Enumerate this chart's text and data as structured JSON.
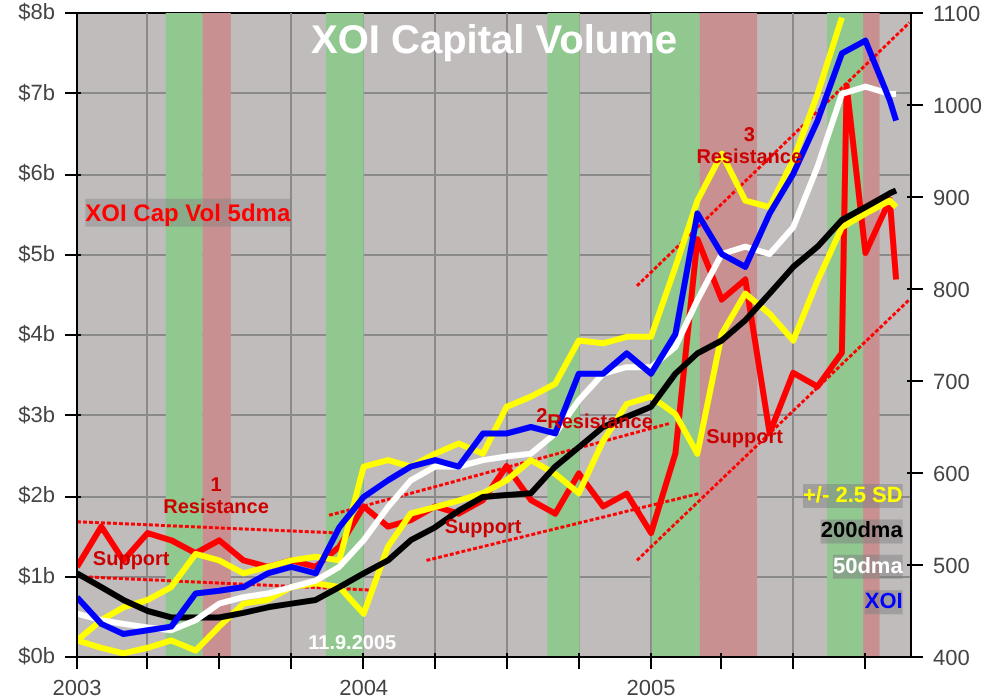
{
  "chart_data": {
    "type": "line",
    "title": "XOI Capital Volume",
    "x": [
      "2003-01",
      "2003-02",
      "2003-03",
      "2003-04",
      "2003-05",
      "2003-06",
      "2003-07",
      "2003-08",
      "2003-09",
      "2003-10",
      "2003-11",
      "2003-12",
      "2004-01",
      "2004-02",
      "2004-03",
      "2004-04",
      "2004-05",
      "2004-06",
      "2004-07",
      "2004-08",
      "2004-09",
      "2004-10",
      "2004-11",
      "2004-12",
      "2005-01",
      "2005-02",
      "2005-03",
      "2005-04",
      "2005-05",
      "2005-06",
      "2005-07",
      "2005-08",
      "2005-09",
      "2005-10",
      "2005-11",
      "2005-11-09"
    ],
    "series": [
      {
        "name": null,
        "color": "#ff0000",
        "line_style": "dotted",
        "x": [
          "2003-01-01",
          "2003-11-30"
        ],
        "values": [
          1.68,
          1.54
        ]
      },
      {
        "name": null,
        "color": "#ff0000",
        "line_style": "dotted",
        "x": [
          "2003-01-01",
          "2004-01-14"
        ],
        "values": [
          1.0,
          0.83
        ]
      },
      {
        "name": null,
        "color": "#ff0000",
        "line_style": "dotted",
        "x": [
          "2003-11-18",
          "2005-01-24"
        ],
        "values": [
          1.76,
          2.9
        ]
      },
      {
        "name": null,
        "color": "#ff0000",
        "line_style": "dotted",
        "x": [
          "2004-03-21",
          "2005-03-03"
        ],
        "values": [
          1.2,
          2.03
        ]
      },
      {
        "name": null,
        "color": "#ff0000",
        "line_style": "dotted",
        "x": [
          "2004-12-14",
          "2005-11-26"
        ],
        "values": [
          4.61,
          7.88
        ]
      },
      {
        "name": null,
        "color": "#ff0000",
        "line_style": "dotted",
        "x": [
          "2004-12-14",
          "2005-11-26"
        ],
        "values": [
          1.2,
          4.44
        ]
      },
      {
        "name": "XOI Cap Vol 5dma",
        "color": "#ff0000",
        "x": [
          "2003-01",
          "2003-02",
          "2003-03",
          "2003-04",
          "2003-05",
          "2003-06",
          "2003-07",
          "2003-08",
          "2003-09",
          "2003-10",
          "2003-11",
          "2003-12",
          "2004-01",
          "2004-02",
          "2004-03",
          "2004-04",
          "2004-05",
          "2004-06",
          "2004-07",
          "2004-08",
          "2004-09",
          "2004-10",
          "2004-11",
          "2004-12",
          "2005-01",
          "2005-02",
          "2005-03",
          "2005-04",
          "2005-05",
          "2005-06",
          "2005-07",
          "2005-08",
          "2005-09",
          "2005-09-07",
          "2005-10",
          "2005-11",
          "2005-11-09"
        ],
        "values": [
          1.12,
          1.62,
          1.2,
          1.54,
          1.45,
          1.29,
          1.45,
          1.2,
          1.12,
          1.2,
          1.12,
          1.37,
          1.87,
          1.62,
          1.7,
          1.87,
          1.78,
          1.95,
          2.37,
          1.95,
          1.78,
          2.28,
          1.87,
          2.03,
          1.54,
          2.53,
          5.19,
          4.44,
          4.69,
          2.78,
          3.53,
          3.36,
          3.78,
          7.1,
          5.02,
          5.68,
          4.69
        ]
      },
      {
        "name": "+/- 2.5 SD",
        "color": "#ffff00",
        "axis": "y2",
        "values": [
          418,
          440,
          454,
          462,
          476,
          512,
          505,
          491,
          498,
          505,
          509,
          505,
          607,
          614,
          607,
          621,
          632,
          621,
          672,
          683,
          697,
          744,
          741,
          748,
          748,
          824,
          896,
          947,
          896,
          889,
          940,
          1012,
          1095,
          null,
          null,
          null
        ]
      },
      {
        "name": null,
        "color": "#ffff00",
        "axis": "y2",
        "values": [
          418,
          410,
          404,
          410,
          418,
          407,
          433,
          458,
          462,
          476,
          480,
          476,
          447,
          520,
          556,
          563,
          570,
          578,
          592,
          614,
          599,
          578,
          635,
          675,
          683,
          664,
          621,
          751,
          795,
          773,
          744,
          809,
          867,
          882,
          896,
          889
        ]
      },
      {
        "name": "200dma",
        "color": "#000000",
        "axis": "y2",
        "values": [
          491,
          476,
          462,
          450,
          443,
          443,
          443,
          448,
          454,
          458,
          462,
          476,
          491,
          505,
          527,
          541,
          559,
          574,
          576,
          578,
          607,
          628,
          650,
          661,
          672,
          708,
          730,
          744,
          766,
          795,
          824,
          846,
          875,
          889,
          904,
          907
        ]
      },
      {
        "name": "50dma",
        "color": "#ffffff",
        "axis": "y2",
        "values": [
          447,
          440,
          436,
          432,
          429,
          440,
          458,
          465,
          469,
          476,
          483,
          498,
          527,
          563,
          592,
          607,
          607,
          614,
          618,
          621,
          643,
          679,
          708,
          715,
          715,
          737,
          788,
          838,
          846,
          838,
          867,
          933,
          1012,
          1020,
          1012,
          1012
        ]
      },
      {
        "name": "XOI",
        "color": "#0000ff",
        "axis": "y2",
        "values": [
          465,
          436,
          425,
          429,
          433,
          469,
          472,
          476,
          491,
          498,
          491,
          541,
          574,
          592,
          607,
          614,
          607,
          643,
          643,
          650,
          643,
          708,
          708,
          730,
          708,
          751,
          882,
          838,
          824,
          882,
          925,
          983,
          1056,
          1070,
          1005,
          983
        ]
      }
    ],
    "xlim": [
      "2003-01-01",
      "2005-11-28"
    ],
    "xticks": [
      "2003",
      {
        "value": "2003-04",
        "label": null
      },
      {
        "value": "2003-07",
        "label": null
      },
      {
        "value": "2003-10",
        "label": null
      },
      "2004",
      {
        "value": "2004-04",
        "label": null
      },
      {
        "value": "2004-07",
        "label": null
      },
      {
        "value": "2004-10",
        "label": null
      },
      "2005",
      {
        "value": "2005-04",
        "label": null
      },
      {
        "value": "2005-07",
        "label": null
      },
      {
        "value": "2005-10",
        "label": null
      }
    ],
    "ylim": [
      0,
      8
    ],
    "yticks": [
      {
        "value": 0,
        "label": "$0b"
      },
      {
        "value": 1,
        "label": "$1b"
      },
      {
        "value": 2,
        "label": "$2b"
      },
      {
        "value": 3,
        "label": "$3b"
      },
      {
        "value": 4,
        "label": "$4b"
      },
      {
        "value": 5,
        "label": "$5b"
      },
      {
        "value": 6,
        "label": "$6b"
      },
      {
        "value": 7,
        "label": "$7b"
      },
      {
        "value": 8,
        "label": "$8b"
      }
    ],
    "y2lim": [
      400,
      1100
    ],
    "y2ticks": [
      400,
      500,
      600,
      700,
      800,
      900,
      1000,
      1100
    ],
    "bands": [
      {
        "axis": "x",
        "from": "2003-04-24",
        "to": "2003-06-10",
        "color": "#90c890"
      },
      {
        "axis": "x",
        "from": "2003-06-10",
        "to": "2003-07-16",
        "color": "#c89090"
      },
      {
        "axis": "x",
        "from": "2003-11-14",
        "to": "2004-01-01",
        "color": "#90c890"
      },
      {
        "axis": "x",
        "from": "2004-08-22",
        "to": "2004-10-02",
        "color": "#90c890"
      },
      {
        "axis": "x",
        "from": "2005-01-02",
        "to": "2005-03-04",
        "color": "#90c890"
      },
      {
        "axis": "x",
        "from": "2005-03-04",
        "to": "2005-05-16",
        "color": "#c89090"
      },
      {
        "axis": "x",
        "from": "2005-08-13",
        "to": "2005-09-28",
        "color": "#90c890"
      },
      {
        "axis": "x",
        "from": "2005-09-28",
        "to": "2005-10-19",
        "color": "#c89090"
      }
    ],
    "annotations": [
      {
        "text": "1",
        "x": "2003-06-27",
        "y": 1.61
      },
      {
        "text": "Resistance",
        "x": "2003-06-27",
        "y": 1.61
      },
      {
        "text": "Support",
        "x": "2003-03-11",
        "y": 0.97
      },
      {
        "text": "2",
        "x": "2004-08-15",
        "y": 2.47
      },
      {
        "text": "Resistance",
        "x": "2004-10-28",
        "y": 2.67
      },
      {
        "text": "Support",
        "x": "2004-06-01",
        "y": 1.37
      },
      {
        "text": "3",
        "x": "2005-05-06",
        "y": 5.96
      },
      {
        "text": "Resistance",
        "x": "2005-05-06",
        "y": 5.96
      },
      {
        "text": "Support",
        "x": "2005-04-30",
        "y": 2.48
      },
      "11.9.2005"
    ],
    "grid": true,
    "legend": "bottom right"
  }
}
